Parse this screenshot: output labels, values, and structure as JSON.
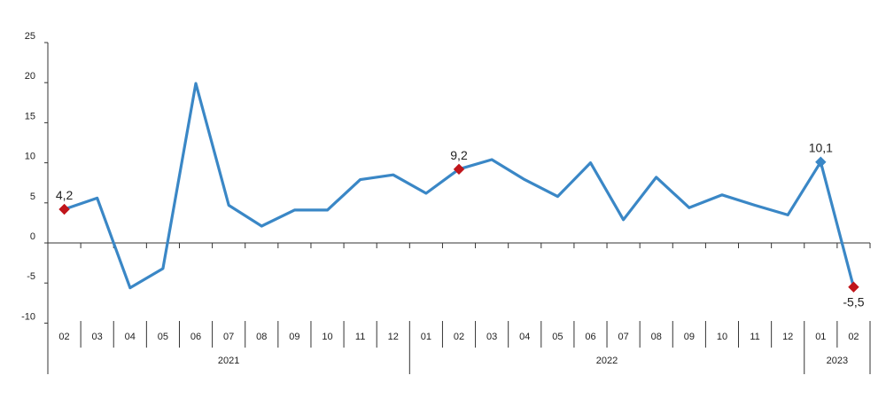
{
  "chart_data": {
    "type": "line",
    "title": "",
    "xlabel": "",
    "ylabel": "",
    "ylim": [
      -10,
      25
    ],
    "yticks": [
      -10,
      -5,
      0,
      5,
      10,
      15,
      20,
      25
    ],
    "grid": false,
    "legend": "none",
    "categories": [
      "02",
      "03",
      "04",
      "05",
      "06",
      "07",
      "08",
      "09",
      "10",
      "11",
      "12",
      "01",
      "02",
      "03",
      "04",
      "05",
      "06",
      "07",
      "08",
      "09",
      "10",
      "11",
      "12",
      "01",
      "02"
    ],
    "year_groups": [
      {
        "label": "2021",
        "count": 11
      },
      {
        "label": "2022",
        "count": 12
      },
      {
        "label": "2023",
        "count": 2
      }
    ],
    "series": [
      {
        "values": [
          4.2,
          5.6,
          -5.6,
          -3.2,
          19.9,
          4.7,
          2.1,
          4.1,
          4.1,
          7.9,
          8.5,
          6.2,
          9.2,
          10.4,
          7.9,
          5.8,
          10.0,
          2.9,
          8.2,
          4.4,
          6.0,
          4.7,
          3.5,
          10.1,
          -5.5
        ],
        "color": "#3a87c6"
      }
    ],
    "point_labels": [
      {
        "index": 0,
        "text": "4,2",
        "marker_color": "#c0151b",
        "position": "above"
      },
      {
        "index": 12,
        "text": "9,2",
        "marker_color": "#c0151b",
        "position": "above"
      },
      {
        "index": 23,
        "text": "10,1",
        "marker_color": "#3a87c6",
        "position": "above"
      },
      {
        "index": 24,
        "text": "-5,5",
        "marker_color": "#c0151b",
        "position": "below"
      }
    ]
  }
}
